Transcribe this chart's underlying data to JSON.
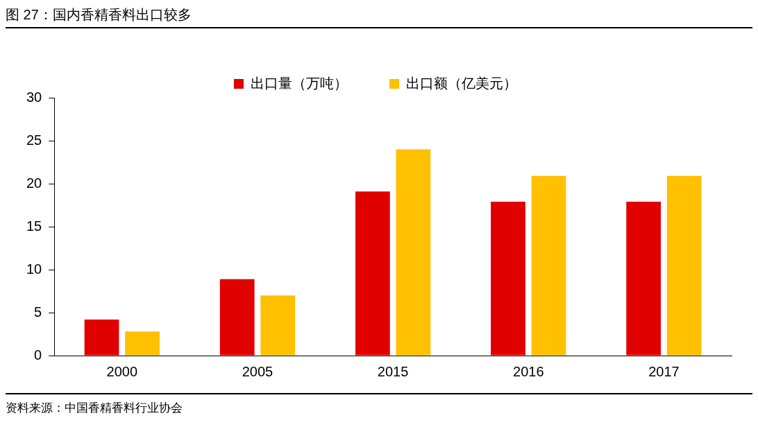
{
  "chart_data": {
    "type": "bar",
    "title": "图 27：国内香精香料出口较多",
    "categories": [
      "2000",
      "2005",
      "2015",
      "2016",
      "2017"
    ],
    "series": [
      {
        "name": "出口量（万吨）",
        "color": "#e00000",
        "values": [
          4.2,
          8.9,
          19.1,
          17.9,
          17.9
        ]
      },
      {
        "name": "出口额（亿美元）",
        "color": "#ffc000",
        "values": [
          2.8,
          7.0,
          24.0,
          20.9,
          20.9
        ]
      }
    ],
    "ylim": [
      0,
      30
    ],
    "yticks": [
      0,
      5,
      10,
      15,
      20,
      25,
      30
    ],
    "grid": false,
    "legend": "top",
    "annotations": [
      "资料来源：中国香精香料行业协会"
    ]
  }
}
